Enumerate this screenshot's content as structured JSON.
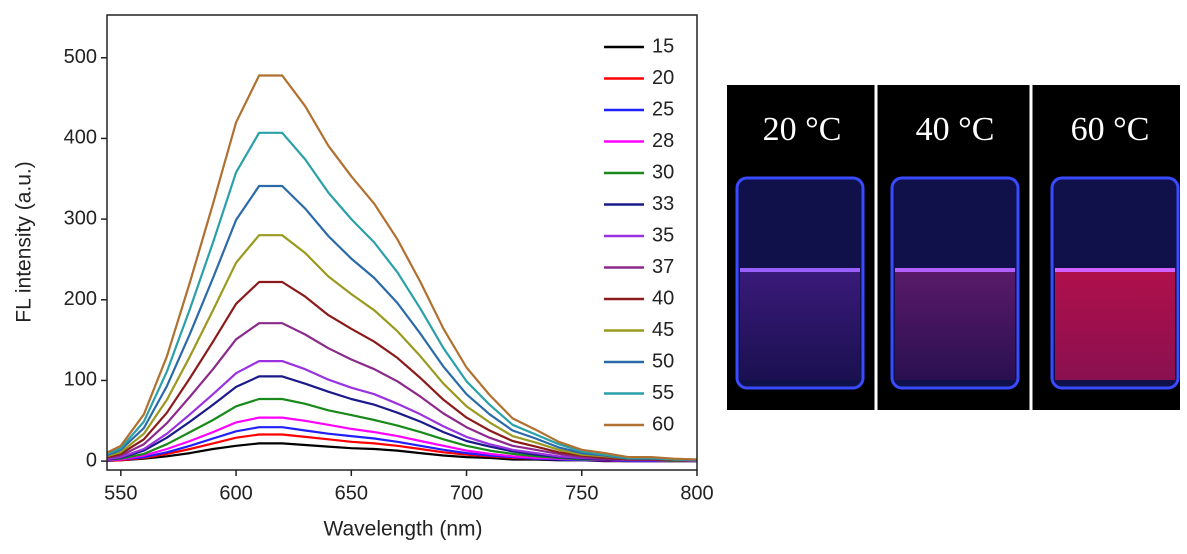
{
  "chart_data": {
    "type": "line",
    "x_label": "Wavelength (nm)",
    "y_label": "FL intensity (a.u.)",
    "x": [
      540,
      550,
      560,
      570,
      580,
      590,
      600,
      610,
      620,
      630,
      640,
      650,
      660,
      670,
      680,
      690,
      700,
      710,
      720,
      730,
      740,
      750,
      760,
      770,
      780,
      790,
      800
    ],
    "xlim": [
      544,
      800
    ],
    "xticks": [
      550,
      600,
      650,
      700,
      750,
      800
    ],
    "ylim": [
      -11,
      553
    ],
    "yticks": [
      0,
      100,
      200,
      300,
      400,
      500
    ],
    "series": [
      {
        "name": "15",
        "color": "#000000",
        "values": [
          0,
          1,
          3,
          6,
          10,
          15,
          19,
          22,
          22,
          20,
          18,
          16,
          15,
          13,
          10,
          7,
          5,
          4,
          2,
          2,
          1,
          1,
          0,
          0,
          0,
          0,
          0
        ]
      },
      {
        "name": "20",
        "color": "#ff0000",
        "values": [
          0,
          1,
          4,
          9,
          15,
          22,
          29,
          33,
          33,
          30,
          27,
          24,
          22,
          19,
          15,
          11,
          8,
          6,
          4,
          3,
          2,
          1,
          1,
          0,
          0,
          0,
          0
        ]
      },
      {
        "name": "25",
        "color": "#2020ff",
        "values": [
          0,
          2,
          5,
          11,
          19,
          28,
          37,
          42,
          42,
          38,
          34,
          31,
          28,
          24,
          19,
          14,
          10,
          7,
          5,
          3,
          2,
          1,
          1,
          0,
          0,
          0,
          0
        ]
      },
      {
        "name": "28",
        "color": "#ff00ff",
        "values": [
          1,
          2,
          7,
          15,
          25,
          36,
          48,
          54,
          54,
          50,
          45,
          40,
          36,
          31,
          25,
          19,
          13,
          9,
          6,
          4,
          3,
          2,
          1,
          1,
          1,
          0,
          0
        ]
      },
      {
        "name": "30",
        "color": "#1a8a1a",
        "values": [
          1,
          3,
          9,
          21,
          36,
          51,
          68,
          77,
          77,
          71,
          63,
          57,
          51,
          44,
          36,
          27,
          19,
          13,
          9,
          6,
          4,
          2,
          2,
          1,
          1,
          0,
          0
        ]
      },
      {
        "name": "33",
        "color": "#1a1a8a",
        "values": [
          1,
          4,
          13,
          29,
          49,
          70,
          92,
          105,
          105,
          96,
          86,
          77,
          70,
          60,
          49,
          36,
          25,
          18,
          12,
          8,
          5,
          3,
          2,
          1,
          1,
          1,
          0
        ]
      },
      {
        "name": "35",
        "color": "#9a32e0",
        "values": [
          1,
          5,
          15,
          34,
          58,
          83,
          109,
          124,
          124,
          114,
          101,
          91,
          83,
          71,
          58,
          43,
          30,
          21,
          14,
          10,
          6,
          4,
          3,
          1,
          1,
          1,
          0
        ]
      },
      {
        "name": "37",
        "color": "#8b2a8b",
        "values": [
          2,
          7,
          21,
          47,
          80,
          114,
          151,
          171,
          171,
          157,
          140,
          126,
          114,
          99,
          80,
          59,
          42,
          29,
          19,
          14,
          9,
          5,
          3,
          2,
          2,
          1,
          1
        ]
      },
      {
        "name": "40",
        "color": "#8b1a1a",
        "values": [
          2,
          9,
          27,
          60,
          103,
          148,
          195,
          222,
          222,
          204,
          181,
          164,
          148,
          128,
          103,
          76,
          54,
          38,
          25,
          18,
          11,
          7,
          4,
          2,
          2,
          1,
          1
        ]
      },
      {
        "name": "45",
        "color": "#9a9a20",
        "values": [
          3,
          11,
          34,
          76,
          130,
          187,
          246,
          280,
          280,
          258,
          229,
          207,
          187,
          161,
          130,
          96,
          68,
          48,
          31,
          23,
          14,
          8,
          6,
          3,
          3,
          2,
          1
        ]
      },
      {
        "name": "50",
        "color": "#2a6aa8",
        "values": [
          3,
          14,
          41,
          93,
          158,
          227,
          299,
          341,
          341,
          313,
          279,
          251,
          227,
          196,
          158,
          117,
          83,
          58,
          38,
          28,
          17,
          10,
          7,
          3,
          3,
          2,
          1
        ]
      },
      {
        "name": "55",
        "color": "#2aa0a8",
        "values": [
          4,
          16,
          49,
          111,
          189,
          271,
          358,
          407,
          407,
          374,
          333,
          300,
          271,
          234,
          189,
          140,
          99,
          70,
          45,
          33,
          21,
          12,
          8,
          4,
          4,
          2,
          2
        ]
      },
      {
        "name": "60",
        "color": "#b07030",
        "values": [
          5,
          19,
          58,
          130,
          222,
          319,
          420,
          478,
          478,
          440,
          391,
          353,
          319,
          275,
          222,
          164,
          116,
          82,
          53,
          39,
          24,
          14,
          10,
          5,
          5,
          3,
          2
        ]
      }
    ]
  },
  "photo": {
    "labels": [
      "20 °C",
      "40 °C",
      "60 °C"
    ]
  }
}
